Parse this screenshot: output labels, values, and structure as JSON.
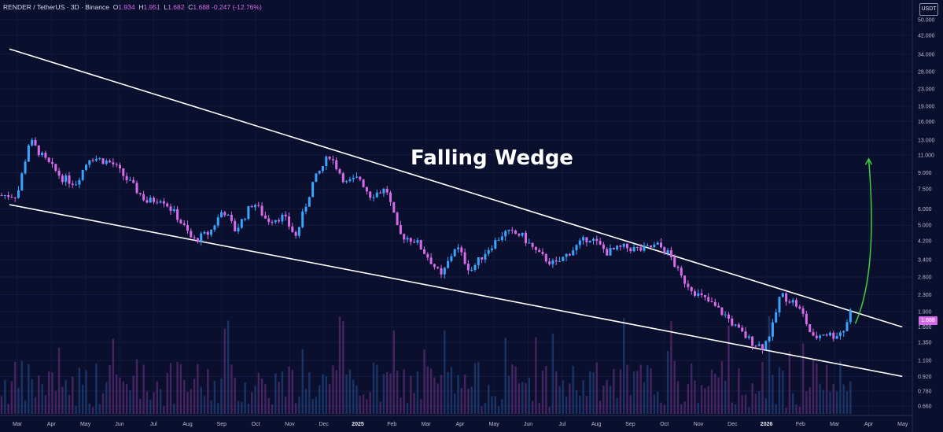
{
  "header": {
    "symbol": "RENDER / TetherUS · 3D · Binance",
    "o_label": "O",
    "o_value": "1.934",
    "h_label": "H",
    "h_value": "1.951",
    "l_label": "L",
    "l_value": "1.682",
    "c_label": "C",
    "c_value": "1.688 -0.247 (-12.76%)"
  },
  "unit_badge": "USDT",
  "current_price": "1.688",
  "colors": {
    "background": "#0b0f2e",
    "up": "#3aa4ff",
    "down": "#d66be8",
    "trendline": "#ffffff",
    "arrow": "#3fd13f"
  },
  "chart_data": {
    "type": "candlestick",
    "title": "",
    "annotation": "Falling Wedge",
    "y_scale": "log",
    "y_ticks": [
      "50.000",
      "42.000",
      "34.000",
      "28.000",
      "23.000",
      "19.000",
      "16.000",
      "13.000",
      "11.000",
      "9.000",
      "7.500",
      "6.000",
      "5.000",
      "4.200",
      "3.400",
      "2.800",
      "2.300",
      "1.900",
      "1.600",
      "1.350",
      "1.100",
      "0.920",
      "0.780",
      "0.660"
    ],
    "x_ticks": [
      {
        "label": "Mar",
        "bold": false
      },
      {
        "label": "Apr",
        "bold": false
      },
      {
        "label": "May",
        "bold": false
      },
      {
        "label": "Jun",
        "bold": false
      },
      {
        "label": "Jul",
        "bold": false
      },
      {
        "label": "Aug",
        "bold": false
      },
      {
        "label": "Sep",
        "bold": false
      },
      {
        "label": "Oct",
        "bold": false
      },
      {
        "label": "Nov",
        "bold": false
      },
      {
        "label": "Dec",
        "bold": false
      },
      {
        "label": "2025",
        "bold": true
      },
      {
        "label": "Feb",
        "bold": false
      },
      {
        "label": "Mar",
        "bold": false
      },
      {
        "label": "Apr",
        "bold": false
      },
      {
        "label": "May",
        "bold": false
      },
      {
        "label": "Jun",
        "bold": false
      },
      {
        "label": "Jul",
        "bold": false
      },
      {
        "label": "Aug",
        "bold": false
      },
      {
        "label": "Sep",
        "bold": false
      },
      {
        "label": "Oct",
        "bold": false
      },
      {
        "label": "Nov",
        "bold": false
      },
      {
        "label": "Dec",
        "bold": false
      },
      {
        "label": "2026",
        "bold": true
      },
      {
        "label": "Feb",
        "bold": false
      },
      {
        "label": "Mar",
        "bold": false
      },
      {
        "label": "Apr",
        "bold": false
      },
      {
        "label": "May",
        "bold": false
      }
    ],
    "price_path": [
      [
        "2024-03-01",
        7.0
      ],
      [
        "2024-03-12",
        13.0
      ],
      [
        "2024-03-25",
        10.5
      ],
      [
        "2024-04-10",
        8.5
      ],
      [
        "2024-04-22",
        8.0
      ],
      [
        "2024-05-05",
        10.8
      ],
      [
        "2024-05-25",
        10.0
      ],
      [
        "2024-06-10",
        8.0
      ],
      [
        "2024-06-25",
        6.5
      ],
      [
        "2024-07-08",
        6.8
      ],
      [
        "2024-07-22",
        5.5
      ],
      [
        "2024-08-05",
        4.2
      ],
      [
        "2024-08-20",
        4.6
      ],
      [
        "2024-09-01",
        6.0
      ],
      [
        "2024-09-12",
        4.7
      ],
      [
        "2024-09-28",
        6.5
      ],
      [
        "2024-10-10",
        5.3
      ],
      [
        "2024-10-25",
        5.5
      ],
      [
        "2024-11-05",
        4.4
      ],
      [
        "2024-11-20",
        8.0
      ],
      [
        "2024-12-05",
        11.0
      ],
      [
        "2024-12-20",
        8.0
      ],
      [
        "2025-01-01",
        8.5
      ],
      [
        "2025-01-10",
        7.0
      ],
      [
        "2025-01-25",
        7.5
      ],
      [
        "2025-02-05",
        4.5
      ],
      [
        "2025-02-20",
        4.2
      ],
      [
        "2025-03-05",
        3.4
      ],
      [
        "2025-03-15",
        2.8
      ],
      [
        "2025-03-28",
        4.0
      ],
      [
        "2025-04-10",
        3.0
      ],
      [
        "2025-04-25",
        3.8
      ],
      [
        "2025-05-10",
        4.6
      ],
      [
        "2025-05-25",
        4.5
      ],
      [
        "2025-06-10",
        3.6
      ],
      [
        "2025-06-25",
        3.2
      ],
      [
        "2025-07-10",
        3.8
      ],
      [
        "2025-07-25",
        4.4
      ],
      [
        "2025-08-10",
        3.7
      ],
      [
        "2025-08-25",
        3.9
      ],
      [
        "2025-09-10",
        3.8
      ],
      [
        "2025-09-25",
        4.0
      ],
      [
        "2025-10-05",
        3.6
      ],
      [
        "2025-10-15",
        2.8
      ],
      [
        "2025-10-30",
        2.3
      ],
      [
        "2025-11-10",
        2.1
      ],
      [
        "2025-11-25",
        1.8
      ],
      [
        "2025-12-05",
        1.55
      ],
      [
        "2025-12-18",
        1.35
      ],
      [
        "2025-12-28",
        1.28
      ],
      [
        "2026-01-05",
        1.6
      ],
      [
        "2026-01-12",
        2.3
      ],
      [
        "2026-01-25",
        2.1
      ],
      [
        "2026-02-02",
        1.8
      ],
      [
        "2026-02-10",
        1.4
      ],
      [
        "2026-02-20",
        1.5
      ],
      [
        "2026-03-01",
        1.45
      ],
      [
        "2026-03-10",
        1.55
      ],
      [
        "2026-03-16",
        1.934
      ],
      [
        "2026-03-18",
        1.688
      ]
    ],
    "trendlines": [
      {
        "name": "upper",
        "from": [
          "2024-03-01",
          36.0
        ],
        "to": [
          "2026-05-01",
          1.6
        ]
      },
      {
        "name": "lower",
        "from": [
          "2024-03-01",
          6.3
        ],
        "to": [
          "2026-05-01",
          0.92
        ]
      }
    ],
    "projection_arrow": {
      "from": [
        "2026-03-20",
        1.66
      ],
      "to": [
        "2026-04-01",
        10.5
      ]
    }
  }
}
